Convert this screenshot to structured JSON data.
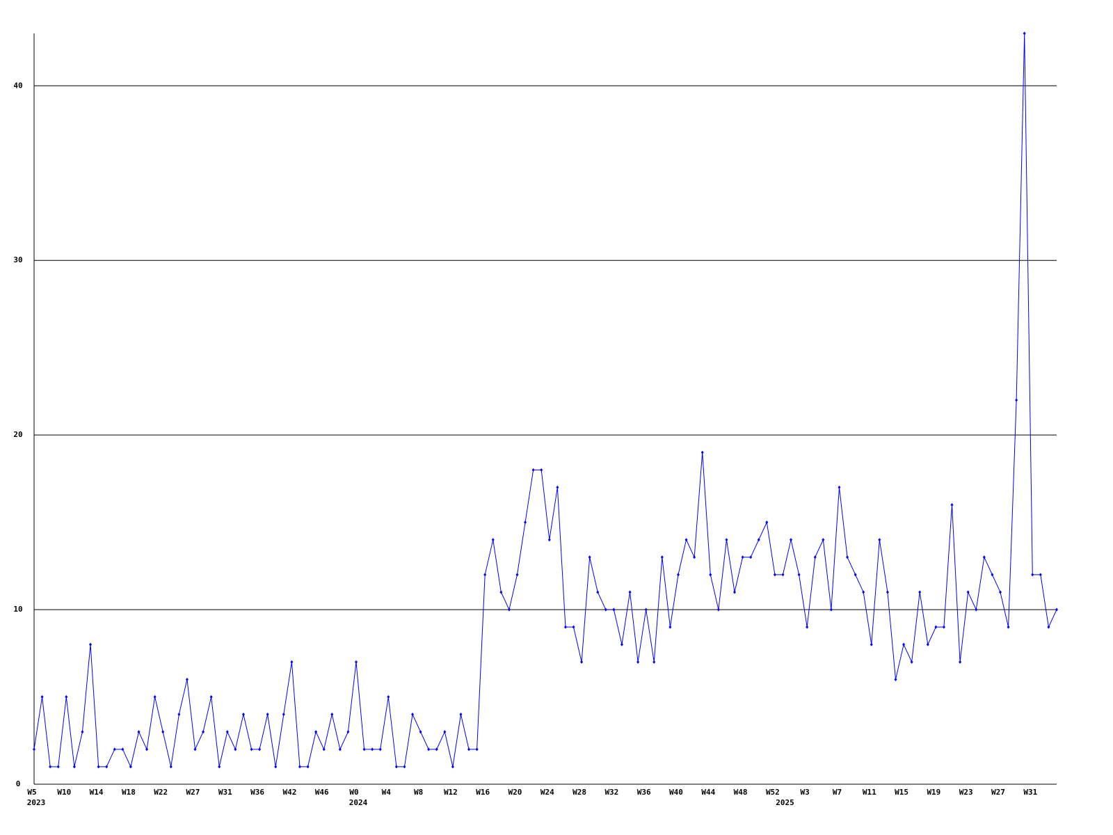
{
  "chart_data": {
    "type": "line",
    "color": "#0000ff",
    "grid": true,
    "ylim": [
      0,
      43
    ],
    "yticks": [
      0,
      10,
      20,
      30,
      40
    ],
    "categories": [
      "W5",
      null,
      null,
      null,
      "W10",
      null,
      null,
      null,
      "W14",
      null,
      null,
      null,
      "W18",
      null,
      null,
      null,
      "W22",
      null,
      null,
      null,
      "W27",
      null,
      null,
      null,
      "W31",
      null,
      null,
      null,
      "W36",
      null,
      null,
      null,
      "W42",
      null,
      null,
      null,
      "W46",
      null,
      null,
      null,
      "W0",
      null,
      null,
      null,
      "W4",
      null,
      null,
      null,
      "W8",
      null,
      null,
      null,
      "W12",
      null,
      null,
      null,
      "W16",
      null,
      null,
      null,
      "W20",
      null,
      null,
      null,
      "W24",
      null,
      null,
      null,
      "W28",
      null,
      null,
      null,
      "W32",
      null,
      null,
      null,
      "W36",
      null,
      null,
      null,
      "W40",
      null,
      null,
      null,
      "W44",
      null,
      null,
      null,
      "W48",
      null,
      null,
      null,
      "W52",
      null,
      null,
      null,
      "W3",
      null,
      null,
      null,
      "W7",
      null,
      null,
      null,
      "W11",
      null,
      null,
      null,
      "W15",
      null,
      null,
      null,
      "W19",
      null,
      null,
      null,
      "W23",
      null,
      null,
      null,
      "W27",
      null,
      null,
      null,
      "W31",
      null,
      null,
      null
    ],
    "category_years": [
      "2023",
      null,
      null,
      null,
      null,
      null,
      null,
      null,
      null,
      null,
      null,
      null,
      null,
      null,
      null,
      null,
      null,
      null,
      null,
      null,
      null,
      null,
      null,
      null,
      null,
      null,
      null,
      null,
      null,
      null,
      null,
      null,
      null,
      null,
      null,
      null,
      null,
      null,
      null,
      null,
      "2024",
      null,
      null,
      null,
      null,
      null,
      null,
      null,
      null,
      null,
      null,
      null,
      null,
      null,
      null,
      null,
      null,
      null,
      null,
      null,
      null,
      null,
      null,
      null,
      null,
      null,
      null,
      null,
      null,
      null,
      null,
      null,
      null,
      null,
      null,
      null,
      null,
      null,
      null,
      null,
      null,
      null,
      null,
      null,
      null,
      null,
      null,
      null,
      null,
      null,
      null,
      null,
      null,
      "2025",
      null,
      null,
      null,
      null,
      null,
      null,
      null,
      null,
      null,
      null,
      null,
      null,
      null,
      null,
      null,
      null,
      null,
      null,
      null,
      null,
      null,
      null,
      null,
      null,
      null,
      null,
      null,
      null,
      null,
      null,
      null,
      null,
      null,
      null
    ],
    "values": [
      2,
      5,
      1,
      1,
      5,
      1,
      3,
      8,
      1,
      1,
      2,
      2,
      1,
      3,
      2,
      5,
      3,
      1,
      4,
      6,
      2,
      3,
      5,
      1,
      3,
      2,
      4,
      2,
      2,
      4,
      1,
      4,
      7,
      1,
      1,
      3,
      2,
      4,
      2,
      3,
      7,
      2,
      2,
      2,
      5,
      1,
      1,
      4,
      3,
      2,
      2,
      3,
      1,
      4,
      2,
      2,
      12,
      14,
      11,
      10,
      12,
      15,
      18,
      18,
      14,
      17,
      9,
      9,
      7,
      13,
      11,
      10,
      10,
      8,
      11,
      7,
      10,
      7,
      13,
      9,
      12,
      14,
      13,
      19,
      12,
      10,
      14,
      11,
      13,
      13,
      14,
      15,
      12,
      12,
      14,
      12,
      9,
      13,
      14,
      10,
      17,
      13,
      12,
      11,
      8,
      14,
      11,
      6,
      8,
      7,
      11,
      8,
      9,
      9,
      16,
      7,
      11,
      10,
      13,
      12,
      11,
      9,
      22,
      43,
      12,
      12,
      9,
      10
    ]
  }
}
